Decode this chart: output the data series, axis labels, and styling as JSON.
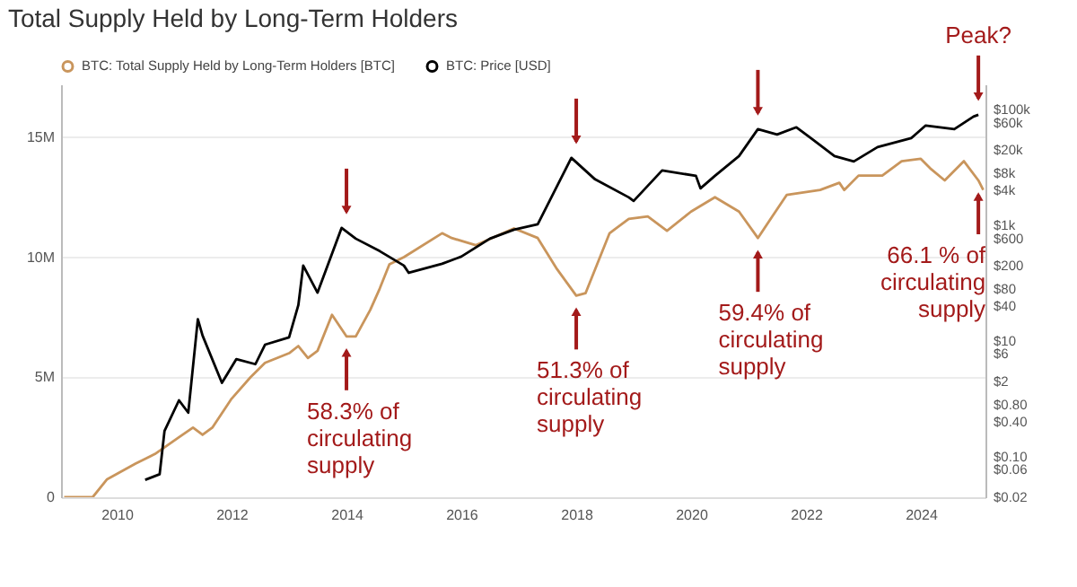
{
  "chart_data": {
    "type": "line",
    "title": "Total Supply Held by Long-Term Holders",
    "legend": "top left",
    "grid": "y",
    "log": "y2",
    "xlim": [
      "2009-01-12",
      "2025-02-15"
    ],
    "xticks": [
      "2010",
      "2012",
      "2014",
      "2016",
      "2018",
      "2020",
      "2022",
      "2024"
    ],
    "ylim": [
      0,
      17.2
    ],
    "yticks": [
      0,
      {
        "value": 5,
        "label": "5M"
      },
      {
        "value": 10,
        "label": "10M"
      },
      {
        "value": 15,
        "label": "15M"
      }
    ],
    "y2lim": [
      0.02,
      276000
    ],
    "y2ticks": [
      {
        "value": 100000,
        "label": "$100k"
      },
      {
        "value": 60000,
        "label": "$60k"
      },
      {
        "value": 20000,
        "label": "$20k"
      },
      {
        "value": 8000,
        "label": "$8k"
      },
      {
        "value": 4000,
        "label": "$4k"
      },
      {
        "value": 1000,
        "label": "$1k"
      },
      {
        "value": 600,
        "label": "$600"
      },
      {
        "value": 200,
        "label": "$200"
      },
      {
        "value": 80,
        "label": "$80"
      },
      {
        "value": 40,
        "label": "$40"
      },
      {
        "value": 10,
        "label": "$10"
      },
      {
        "value": 6,
        "label": "$6"
      },
      {
        "value": 2,
        "label": "$2"
      },
      {
        "value": 0.8,
        "label": "$0.80"
      },
      {
        "value": 0.4,
        "label": "$0.40"
      },
      {
        "value": 0.1,
        "label": "$0.10"
      },
      {
        "value": 0.06,
        "label": "$0.06"
      },
      {
        "value": 0.02,
        "label": "$0.02"
      }
    ],
    "series": [
      {
        "name": "BTC: Total Supply Held by Long-Term Holders [BTC]",
        "color": "#c9955c",
        "x": [
          "2009-02",
          "2009-08",
          "2009-11",
          "2010-05",
          "2010-09",
          "2011-02",
          "2011-05",
          "2011-07",
          "2011-09",
          "2012-01",
          "2012-05",
          "2012-08",
          "2013-01",
          "2013-03",
          "2013-05",
          "2013-07",
          "2013-10",
          "2014-01",
          "2014-03",
          "2014-06",
          "2014-08",
          "2014-10",
          "2015-01",
          "2015-09",
          "2015-11",
          "2016-04",
          "2016-12",
          "2017-05",
          "2017-09",
          "2018-01",
          "2018-03",
          "2018-08",
          "2018-12",
          "2019-04",
          "2019-08",
          "2020-01",
          "2020-06",
          "2020-11",
          "2021-03",
          "2021-06",
          "2021-09",
          "2022-04",
          "2022-08",
          "2022-09",
          "2022-12",
          "2023-05",
          "2023-09",
          "2024-01",
          "2024-03",
          "2024-06",
          "2024-10",
          "2025-01",
          "2025-02"
        ],
        "values": [
          0,
          0,
          0.75,
          1.4,
          1.8,
          2.5,
          2.9,
          2.6,
          2.9,
          4.1,
          5.0,
          5.6,
          6.0,
          6.3,
          5.8,
          6.1,
          7.6,
          6.7,
          6.7,
          7.8,
          8.7,
          9.7,
          10.0,
          11.0,
          10.8,
          10.5,
          11.2,
          10.8,
          9.5,
          8.4,
          8.5,
          11.0,
          11.6,
          11.7,
          11.1,
          11.9,
          12.5,
          11.9,
          10.8,
          11.7,
          12.6,
          12.8,
          13.1,
          12.8,
          13.4,
          13.4,
          14.0,
          14.1,
          13.7,
          13.2,
          14.0,
          13.2,
          12.8
        ]
      },
      {
        "name": "BTC: Price [USD]",
        "color": "#000000",
        "axis": "y2",
        "x": [
          "2010-07",
          "2010-10",
          "2010-11",
          "2011-02",
          "2011-04",
          "2011-06",
          "2011-07",
          "2011-11",
          "2012-02",
          "2012-06",
          "2012-08",
          "2013-01",
          "2013-03",
          "2013-04",
          "2013-07",
          "2013-12",
          "2014-03",
          "2014-08",
          "2015-01",
          "2015-02",
          "2015-09",
          "2016-01",
          "2016-07",
          "2016-12",
          "2017-05",
          "2017-12",
          "2018-05",
          "2018-12",
          "2019-01",
          "2019-07",
          "2020-02",
          "2020-03",
          "2020-06",
          "2020-11",
          "2021-03",
          "2021-07",
          "2021-11",
          "2022-02",
          "2022-07",
          "2022-11",
          "2023-04",
          "2023-11",
          "2024-02",
          "2024-08",
          "2024-12",
          "2025-01"
        ],
        "values": [
          0.04,
          0.05,
          0.28,
          0.95,
          0.58,
          24,
          12.5,
          1.9,
          4.9,
          4,
          8.7,
          11.6,
          42,
          203,
          69,
          910,
          593,
          360,
          203,
          152,
          218,
          290,
          593,
          848,
          1050,
          14800,
          6280,
          3070,
          2660,
          8980,
          7240,
          4390,
          7240,
          15900,
          46400,
          37500,
          50000,
          32500,
          15900,
          12800,
          22700,
          32500,
          53700,
          46400,
          76700,
          82400
        ]
      }
    ],
    "annotations": [
      "Peak?",
      {
        "text": "58.3% of circulating supply",
        "x": "2014-01",
        "y": 6.7
      },
      {
        "text": "51.3% of circulating supply",
        "x": "2018-01",
        "y": 8.4
      },
      {
        "text": "59.4% of circulating supply",
        "x": "2021-03",
        "y": 10.8
      },
      {
        "text": "66.1 % of circulating supply",
        "x": "2025-01",
        "y": 13.2
      }
    ]
  }
}
